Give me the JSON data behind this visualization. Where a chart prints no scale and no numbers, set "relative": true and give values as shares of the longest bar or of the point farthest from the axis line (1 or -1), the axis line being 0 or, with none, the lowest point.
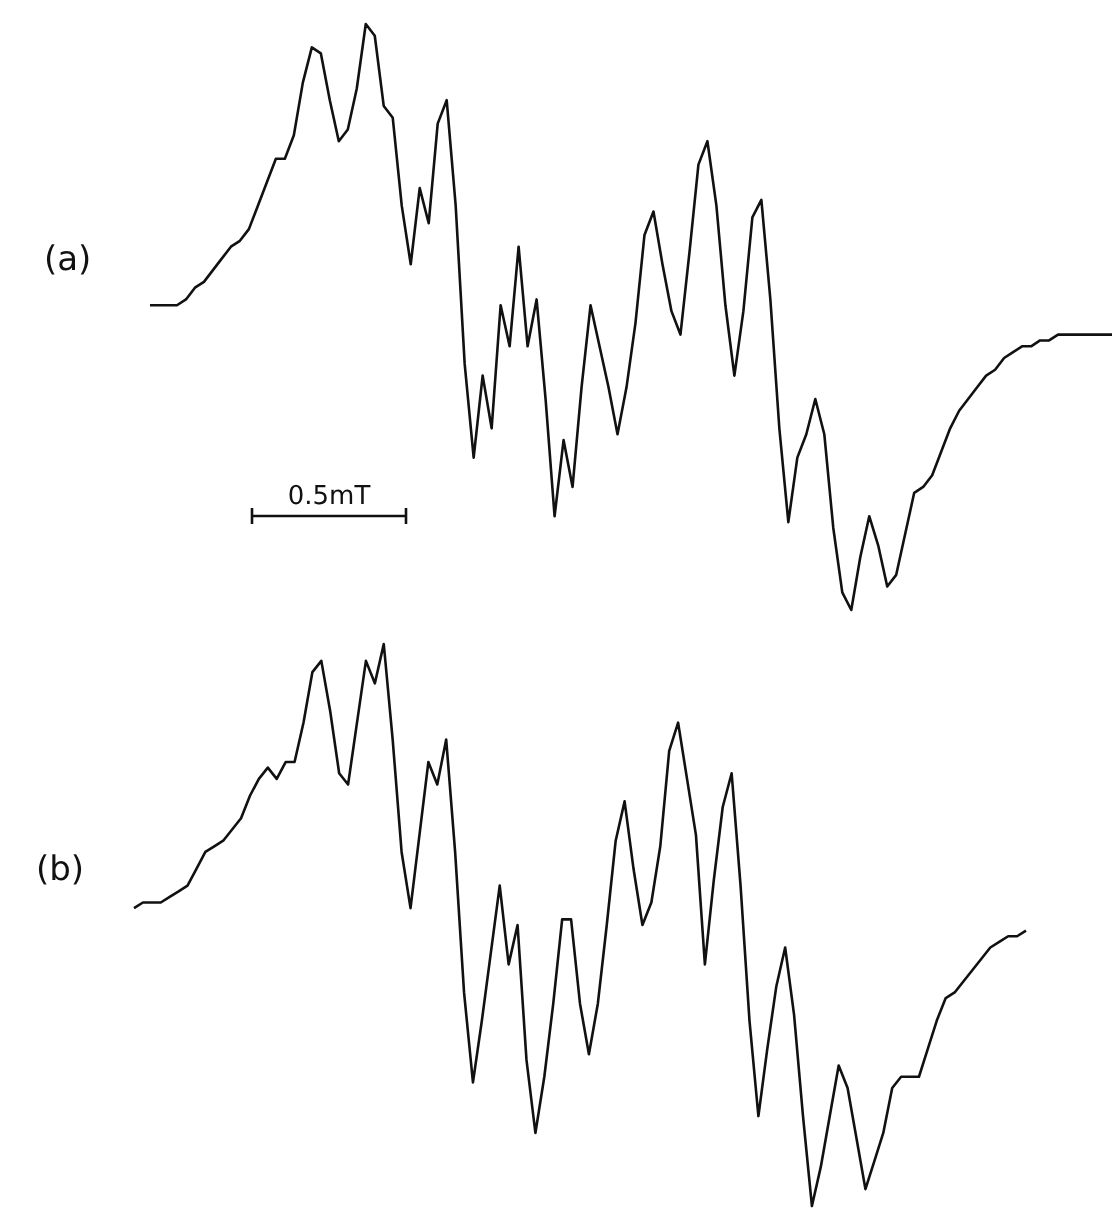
{
  "chart_data": [
    {
      "type": "line",
      "title": "(a)",
      "relative": true,
      "annotations": [
        "0.5mT"
      ],
      "categories": [
        null,
        null,
        null,
        null,
        null,
        null,
        null,
        null,
        null,
        null,
        null,
        null,
        null,
        null,
        null,
        null,
        null,
        null,
        null,
        null,
        null,
        null,
        null,
        null,
        null,
        null,
        null,
        null,
        null,
        null,
        null,
        null,
        null,
        null,
        null,
        null,
        null,
        null,
        null,
        null,
        null,
        null,
        null,
        null,
        null,
        null,
        null,
        null,
        null,
        null,
        null,
        null,
        null,
        null,
        null,
        null,
        null,
        null,
        null,
        null,
        null,
        null,
        null,
        null,
        null,
        null,
        null,
        null,
        null,
        null,
        null,
        null,
        null,
        null,
        null,
        null,
        null,
        null,
        null,
        null,
        null,
        null,
        null,
        null,
        null,
        null,
        null,
        null,
        null,
        null,
        null,
        null,
        null,
        null,
        null,
        null,
        null,
        null,
        null,
        null,
        null,
        null,
        null,
        null,
        null,
        null,
        null,
        null
      ],
      "series": [
        {
          "color": "#111111",
          "values": [
            0.52,
            0.52,
            0.52,
            0.52,
            0.53,
            0.55,
            0.56,
            0.58,
            0.6,
            0.62,
            0.63,
            0.65,
            0.69,
            0.73,
            0.77,
            0.77,
            0.81,
            0.9,
            0.96,
            0.95,
            0.87,
            0.8,
            0.82,
            0.89,
            1.0,
            0.98,
            0.86,
            0.84,
            0.69,
            0.59,
            0.72,
            0.66,
            0.83,
            0.87,
            0.69,
            0.42,
            0.26,
            0.4,
            0.31,
            0.52,
            0.45,
            0.62,
            0.45,
            0.53,
            0.36,
            0.16,
            0.29,
            0.21,
            0.38,
            0.52,
            0.45,
            0.38,
            0.3,
            0.38,
            0.49,
            0.64,
            0.68,
            0.59,
            0.51,
            0.47,
            0.61,
            0.76,
            0.8,
            0.69,
            0.52,
            0.4,
            0.51,
            0.67,
            0.7,
            0.53,
            0.31,
            0.15,
            0.26,
            0.3,
            0.36,
            0.3,
            0.14,
            0.03,
            0.0,
            0.09,
            0.16,
            0.11,
            0.04,
            0.06,
            0.13,
            0.2,
            0.21,
            0.23,
            0.27,
            0.31,
            0.34,
            0.36,
            0.38,
            0.4,
            0.41,
            0.43,
            0.44,
            0.45,
            0.45,
            0.46,
            0.46,
            0.47,
            0.47,
            0.47,
            0.47,
            0.47,
            0.47,
            0.47
          ]
        }
      ]
    },
    {
      "type": "line",
      "title": "(b)",
      "relative": true,
      "categories": [
        null,
        null,
        null,
        null,
        null,
        null,
        null,
        null,
        null,
        null,
        null,
        null,
        null,
        null,
        null,
        null,
        null,
        null,
        null,
        null,
        null,
        null,
        null,
        null,
        null,
        null,
        null,
        null,
        null,
        null,
        null,
        null,
        null,
        null,
        null,
        null,
        null,
        null,
        null,
        null,
        null,
        null,
        null,
        null,
        null,
        null,
        null,
        null,
        null,
        null,
        null,
        null,
        null,
        null,
        null,
        null,
        null,
        null,
        null,
        null,
        null,
        null,
        null,
        null,
        null,
        null,
        null,
        null,
        null,
        null,
        null,
        null,
        null,
        null,
        null,
        null,
        null,
        null,
        null,
        null,
        null,
        null,
        null,
        null,
        null,
        null,
        null,
        null,
        null,
        null,
        null,
        null,
        null,
        null,
        null,
        null,
        null,
        null,
        null,
        null,
        null
      ],
      "series": [
        {
          "color": "#111111",
          "values": [
            0.53,
            0.54,
            0.54,
            0.54,
            0.55,
            0.56,
            0.57,
            0.6,
            0.63,
            0.64,
            0.65,
            0.67,
            0.69,
            0.73,
            0.76,
            0.78,
            0.76,
            0.79,
            0.79,
            0.86,
            0.95,
            0.97,
            0.88,
            0.77,
            0.75,
            0.86,
            0.97,
            0.93,
            1.0,
            0.83,
            0.63,
            0.53,
            0.66,
            0.79,
            0.75,
            0.83,
            0.63,
            0.38,
            0.22,
            0.33,
            0.45,
            0.57,
            0.43,
            0.5,
            0.26,
            0.13,
            0.23,
            0.36,
            0.51,
            0.51,
            0.36,
            0.27,
            0.36,
            0.5,
            0.65,
            0.72,
            0.6,
            0.5,
            0.54,
            0.64,
            0.81,
            0.86,
            0.76,
            0.66,
            0.43,
            0.58,
            0.71,
            0.77,
            0.57,
            0.33,
            0.16,
            0.28,
            0.39,
            0.46,
            0.34,
            0.16,
            0.0,
            0.07,
            0.16,
            0.25,
            0.21,
            0.12,
            0.03,
            0.08,
            0.13,
            0.21,
            0.23,
            0.23,
            0.23,
            0.28,
            0.33,
            0.37,
            0.38,
            0.4,
            0.42,
            0.44,
            0.46,
            0.47,
            0.48,
            0.48,
            0.49
          ]
        }
      ]
    }
  ]
}
